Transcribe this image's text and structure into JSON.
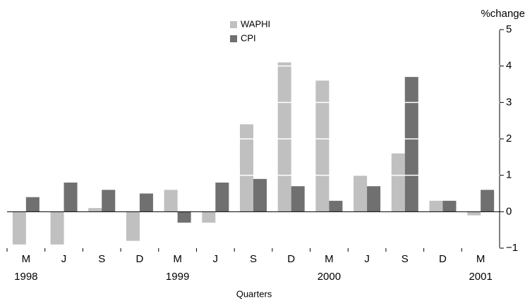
{
  "chart_data": {
    "type": "bar",
    "categories": [
      "M",
      "J",
      "S",
      "D",
      "M",
      "J",
      "S",
      "D",
      "M",
      "J",
      "S",
      "D",
      "M"
    ],
    "years": [
      "1998",
      null,
      null,
      null,
      "1999",
      null,
      null,
      null,
      "2000",
      null,
      null,
      null,
      "2001"
    ],
    "series": [
      {
        "name": "WAPHI",
        "color": "#c0c0c0",
        "values": [
          -0.9,
          -0.9,
          0.1,
          -0.8,
          0.6,
          -0.3,
          2.4,
          4.1,
          3.6,
          1.0,
          1.6,
          0.3,
          -0.1
        ]
      },
      {
        "name": "CPI",
        "color": "#707070",
        "values": [
          0.4,
          0.8,
          0.6,
          0.5,
          -0.3,
          0.8,
          0.9,
          0.7,
          0.3,
          0.7,
          3.7,
          0.3,
          0.6
        ]
      }
    ],
    "y_axis_label": "%change",
    "x_axis_label": "Quarters",
    "ylim": [
      -1,
      5
    ],
    "yticks": [
      {
        "value": -1,
        "label": "−1"
      },
      0,
      1,
      2,
      3,
      4,
      5
    ],
    "grid": true,
    "grid_color": "#ffffff"
  }
}
